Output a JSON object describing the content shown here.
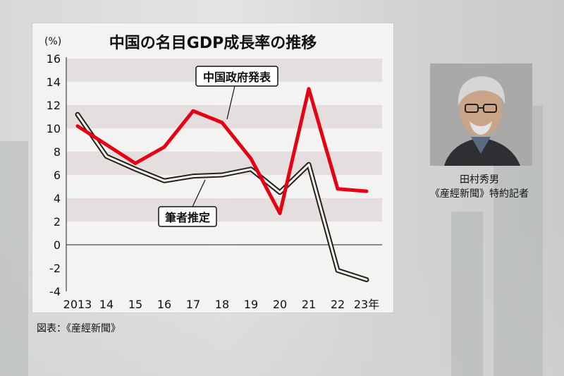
{
  "chart_data": {
    "type": "line",
    "title": "中国の名目GDP成長率の推移",
    "ylabel": "(%)",
    "ylim": [
      -4,
      16
    ],
    "yticks": [
      "16",
      "14",
      "12",
      "10",
      "8",
      "6",
      "4",
      "2",
      "0",
      "-2",
      "-4"
    ],
    "ytick_values": [
      16,
      14,
      12,
      10,
      8,
      6,
      4,
      2,
      0,
      -2,
      -4
    ],
    "categories": [
      "2013",
      "14",
      "15",
      "16",
      "17",
      "18",
      "19",
      "20",
      "21",
      "22",
      "23年"
    ],
    "series": [
      {
        "name": "中国政府発表",
        "color": "#e50012",
        "values": [
          10.2,
          8.6,
          7.0,
          8.4,
          11.5,
          10.5,
          7.4,
          2.7,
          13.4,
          4.8,
          4.6
        ]
      },
      {
        "name": "筆者推定",
        "color": "#222222",
        "values": [
          11.2,
          7.6,
          6.5,
          5.5,
          5.9,
          6.0,
          6.5,
          4.5,
          6.9,
          -2.2,
          -3.0
        ]
      }
    ],
    "grid": "horizontal bands"
  },
  "source_text": "図表：《産經新聞》",
  "author": {
    "name": "田村秀男",
    "title": "《産經新聞》特約記者"
  }
}
